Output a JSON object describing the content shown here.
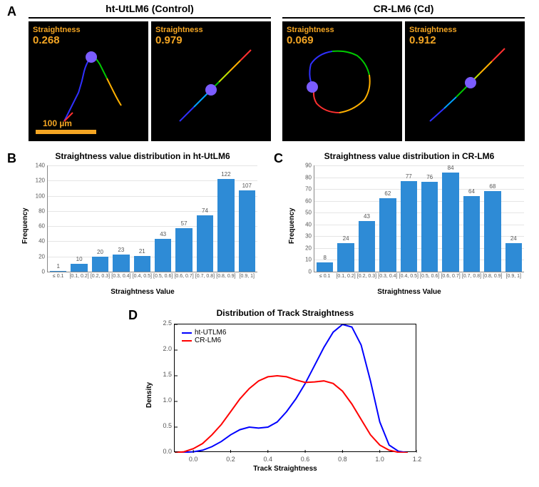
{
  "panelA": {
    "label": "A",
    "group1_label": "ht-UtLM6 (Control)",
    "group2_label": "CR-LM6 (Cd)",
    "overlay_label": "Straightness",
    "tracks": [
      {
        "straightness": "0.268"
      },
      {
        "straightness": "0.979"
      },
      {
        "straightness": "0.069"
      },
      {
        "straightness": "0.912"
      }
    ],
    "scalebar_label": "100 µm",
    "marker_color": "#7b5cff",
    "overlay_color": "#f5a623"
  },
  "panelB": {
    "label": "B",
    "title": "Straightness value distribution in ht-UtLM6",
    "type": "bar",
    "ylabel": "Frequency",
    "xlabel": "Straightness Value",
    "categories": [
      "≤ 0.1",
      "[0.1, 0.2]",
      "[0.2, 0.3]",
      "[0.3, 0.4]",
      "[0.4, 0.5]",
      "[0.5, 0.6]",
      "[0.6, 0.7]",
      "[0.7, 0.8]",
      "[0.8, 0.9]",
      "[0.9, 1]"
    ],
    "values": [
      1,
      10,
      20,
      23,
      21,
      43,
      57,
      74,
      122,
      107
    ],
    "ylim": [
      0,
      140
    ],
    "ytick_step": 20,
    "bar_color": "#2e8bd6",
    "grid_color": "#e5e5e5"
  },
  "panelC": {
    "label": "C",
    "title": "Straightness value distribution in CR-LM6",
    "type": "bar",
    "ylabel": "Frequency",
    "xlabel": "Straightness Value",
    "categories": [
      "≤ 0.1",
      "[0.1, 0.2]",
      "[0.2, 0.3]",
      "[0.3, 0.4]",
      "[0.4, 0.5]",
      "[0.5, 0.6]",
      "[0.6, 0.7]",
      "[0.7, 0.8]",
      "[0.8, 0.9]",
      "[0.9, 1]"
    ],
    "values": [
      8,
      24,
      43,
      62,
      77,
      76,
      84,
      64,
      68,
      24
    ],
    "ylim": [
      0,
      90
    ],
    "ytick_step": 10,
    "bar_color": "#2e8bd6",
    "grid_color": "#e5e5e5"
  },
  "panelD": {
    "label": "D",
    "title": "Distribution of Track Straightness",
    "type": "density",
    "ylabel": "Density",
    "xlabel": "Track Straightness",
    "xlim": [
      -0.1,
      1.2
    ],
    "ylim": [
      0,
      2.5
    ],
    "xtick_step": 0.2,
    "ytick_step": 0.5,
    "series": [
      {
        "name": "ht-UTLM6",
        "color": "#0000ff",
        "points": [
          [
            -0.1,
            0.0
          ],
          [
            0.0,
            0.02
          ],
          [
            0.05,
            0.05
          ],
          [
            0.1,
            0.12
          ],
          [
            0.15,
            0.22
          ],
          [
            0.2,
            0.35
          ],
          [
            0.25,
            0.45
          ],
          [
            0.3,
            0.5
          ],
          [
            0.35,
            0.48
          ],
          [
            0.4,
            0.5
          ],
          [
            0.45,
            0.6
          ],
          [
            0.5,
            0.8
          ],
          [
            0.55,
            1.05
          ],
          [
            0.6,
            1.35
          ],
          [
            0.65,
            1.7
          ],
          [
            0.7,
            2.05
          ],
          [
            0.75,
            2.35
          ],
          [
            0.8,
            2.5
          ],
          [
            0.85,
            2.45
          ],
          [
            0.9,
            2.1
          ],
          [
            0.95,
            1.4
          ],
          [
            1.0,
            0.6
          ],
          [
            1.05,
            0.15
          ],
          [
            1.1,
            0.03
          ],
          [
            1.15,
            0.0
          ]
        ]
      },
      {
        "name": "CR-LM6",
        "color": "#ff0000",
        "points": [
          [
            -0.1,
            0.0
          ],
          [
            -0.05,
            0.02
          ],
          [
            0.0,
            0.08
          ],
          [
            0.05,
            0.18
          ],
          [
            0.1,
            0.35
          ],
          [
            0.15,
            0.55
          ],
          [
            0.2,
            0.8
          ],
          [
            0.25,
            1.05
          ],
          [
            0.3,
            1.25
          ],
          [
            0.35,
            1.4
          ],
          [
            0.4,
            1.48
          ],
          [
            0.45,
            1.5
          ],
          [
            0.5,
            1.48
          ],
          [
            0.55,
            1.42
          ],
          [
            0.6,
            1.37
          ],
          [
            0.65,
            1.38
          ],
          [
            0.7,
            1.4
          ],
          [
            0.75,
            1.35
          ],
          [
            0.8,
            1.2
          ],
          [
            0.85,
            0.95
          ],
          [
            0.9,
            0.65
          ],
          [
            0.95,
            0.35
          ],
          [
            1.0,
            0.15
          ],
          [
            1.05,
            0.05
          ],
          [
            1.1,
            0.01
          ],
          [
            1.15,
            0.0
          ]
        ]
      }
    ],
    "legend": [
      {
        "label": "ht-UTLM6",
        "color": "#0000ff"
      },
      {
        "label": "CR-LM6",
        "color": "#ff0000"
      }
    ]
  }
}
